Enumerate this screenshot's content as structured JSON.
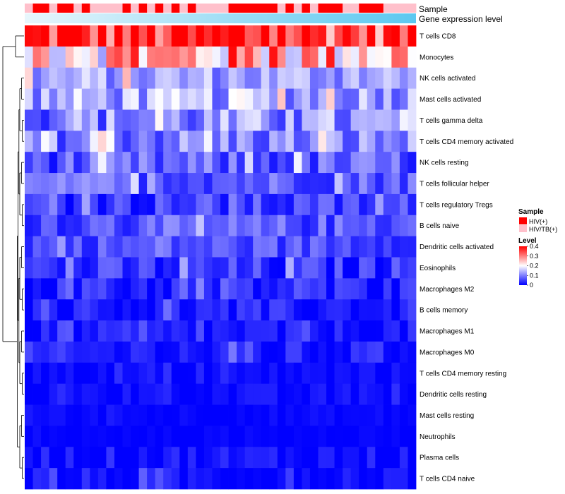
{
  "chart_data": {
    "type": "heatmap",
    "title": "",
    "color_scale": {
      "min": 0,
      "mid": 0.2,
      "max": 0.4,
      "low_color": "#0000FF",
      "mid_color": "#FFFFFF",
      "high_color": "#FF0000"
    },
    "annotations": {
      "sample_label": "Sample",
      "expression_label": "Gene expression level",
      "expression_color": "#5BC8F0",
      "sample_classes": [
        {
          "name": "HIV(+)",
          "color": "#FF0000"
        },
        {
          "name": "HIV/TB(+)",
          "color": "#FFC0CB"
        }
      ],
      "sample_groups": [
        1,
        0,
        0,
        1,
        0,
        0,
        1,
        0,
        1,
        1,
        1,
        1,
        0,
        1,
        0,
        1,
        0,
        1,
        0,
        1,
        0,
        1,
        1,
        1,
        1,
        0,
        0,
        0,
        0,
        0,
        0,
        1,
        0,
        1,
        0,
        1,
        0,
        0,
        0,
        1,
        1,
        0,
        0,
        0,
        1,
        1,
        1,
        1
      ]
    },
    "legend": {
      "sample_title": "Sample",
      "level_title": "Level",
      "ticks": [
        "0.4",
        "0.3",
        "0.2",
        "0.1",
        "0"
      ],
      "position": "right"
    },
    "rows": [
      "T cells CD8",
      "Monocytes",
      "NK cells activated",
      "Mast cells activated",
      "T cells gamma delta",
      "T cells CD4 memory activated",
      "NK cells resting",
      "T cells follicular helper",
      "T cells regulatory  Tregs",
      "B cells naive",
      "Dendritic cells activated",
      "Eosinophils",
      "Macrophages M2",
      "B cells memory",
      "Macrophages M1",
      "Macrophages M0",
      "T cells CD4 memory resting",
      "Dendritic cells resting",
      "Mast cells resting",
      "Neutrophils",
      "Plasma cells",
      "T cells CD4 naive"
    ],
    "row_profiles": [
      {
        "base": 0.32,
        "spread": 0.12
      },
      {
        "base": 0.22,
        "spread": 0.14
      },
      {
        "base": 0.11,
        "spread": 0.06
      },
      {
        "base": 0.11,
        "spread": 0.07
      },
      {
        "base": 0.08,
        "spread": 0.08
      },
      {
        "base": 0.08,
        "spread": 0.07
      },
      {
        "base": 0.05,
        "spread": 0.06
      },
      {
        "base": 0.06,
        "spread": 0.05
      },
      {
        "base": 0.03,
        "spread": 0.05
      },
      {
        "base": 0.05,
        "spread": 0.05
      },
      {
        "base": 0.05,
        "spread": 0.04
      },
      {
        "base": 0.02,
        "spread": 0.05
      },
      {
        "base": 0.015,
        "spread": 0.04
      },
      {
        "base": 0.01,
        "spread": 0.035
      },
      {
        "base": 0.006,
        "spread": 0.03
      },
      {
        "base": 0.008,
        "spread": 0.035
      },
      {
        "base": 0.003,
        "spread": 0.015
      },
      {
        "base": 0.003,
        "spread": 0.018
      },
      {
        "base": 0.002,
        "spread": 0.01
      },
      {
        "base": 0.0,
        "spread": 0.006
      },
      {
        "base": 0.004,
        "spread": 0.03
      },
      {
        "base": 0.002,
        "spread": 0.03
      }
    ],
    "n_samples": 48,
    "dendrogram": {
      "merges": [
        [
          0,
          1
        ],
        [
          2,
          3
        ],
        [
          4,
          5
        ],
        [
          6,
          7
        ],
        [
          8,
          9
        ],
        [
          10,
          11
        ],
        [
          12,
          13
        ],
        [
          14,
          15
        ],
        [
          16,
          17
        ],
        [
          18,
          19
        ],
        [
          20,
          21
        ]
      ]
    }
  }
}
